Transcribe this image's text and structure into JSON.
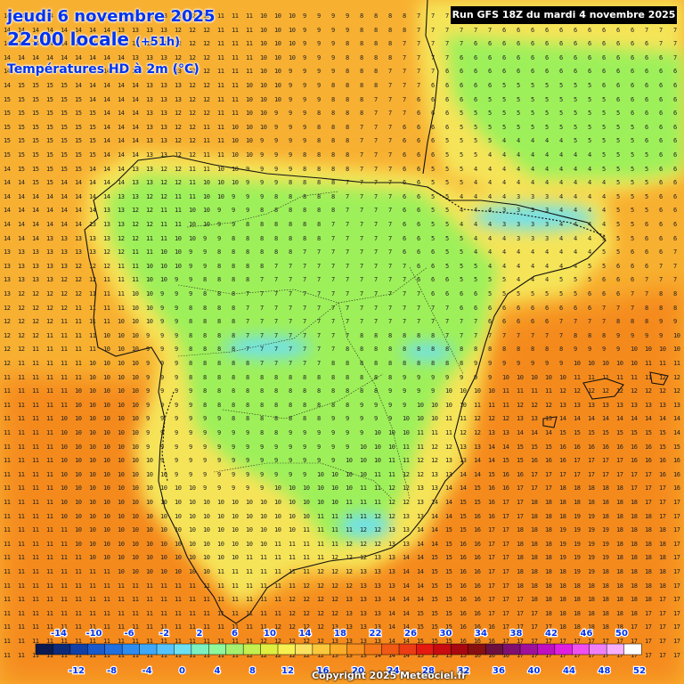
{
  "header": {
    "date": "jeudi 6 novembre 2025",
    "time": "22:00 locale",
    "lead": "(+51h)",
    "variable": "Températures HD à 2m (°C)",
    "run": "Run GFS 18Z du mardi 4 novembre 2025"
  },
  "footer": {
    "copyright": "Copyright 2025 Meteociel.fr"
  },
  "legend": {
    "top_labels": [
      "-14",
      "-10",
      "-6",
      "-2",
      "2",
      "6",
      "10",
      "14",
      "18",
      "22",
      "26",
      "30",
      "34",
      "38",
      "42",
      "46",
      "50"
    ],
    "bottom_labels": [
      "-12",
      "-8",
      "-4",
      "0",
      "4",
      "8",
      "12",
      "16",
      "20",
      "24",
      "28",
      "32",
      "36",
      "40",
      "44",
      "48",
      "52"
    ],
    "colors": [
      "#0a1a50",
      "#0d2b78",
      "#1140a8",
      "#1a5acc",
      "#2270e0",
      "#2d8cf0",
      "#3fa8f8",
      "#56c4fa",
      "#6ee0f0",
      "#7cf0c0",
      "#8ef89a",
      "#a6f070",
      "#c4f050",
      "#e0f040",
      "#f8f050",
      "#fce060",
      "#fcc83c",
      "#fcac28",
      "#f89020",
      "#f47818",
      "#f05a14",
      "#ec3c14",
      "#e41a10",
      "#c80c10",
      "#a80810",
      "#881010",
      "#6c1040",
      "#801070",
      "#a0109a",
      "#c010c0",
      "#e020e0",
      "#f050f0",
      "#f080f8",
      "#f8b0fc",
      "#ffffff"
    ]
  },
  "map": {
    "colors": {
      "ocean_warm": "#f58a1e",
      "ocean_mild": "#f8b030",
      "coast_yellow": "#f6e458",
      "inland_green": "#9ef05a",
      "cold_cyan": "#6ee0f0"
    },
    "zones": [
      {
        "name": "iberia-plateau",
        "value": 7
      },
      {
        "name": "pyrenees",
        "value": 3
      },
      {
        "name": "mediterranean",
        "value": 19
      },
      {
        "name": "atlantic",
        "value": 15
      }
    ]
  }
}
